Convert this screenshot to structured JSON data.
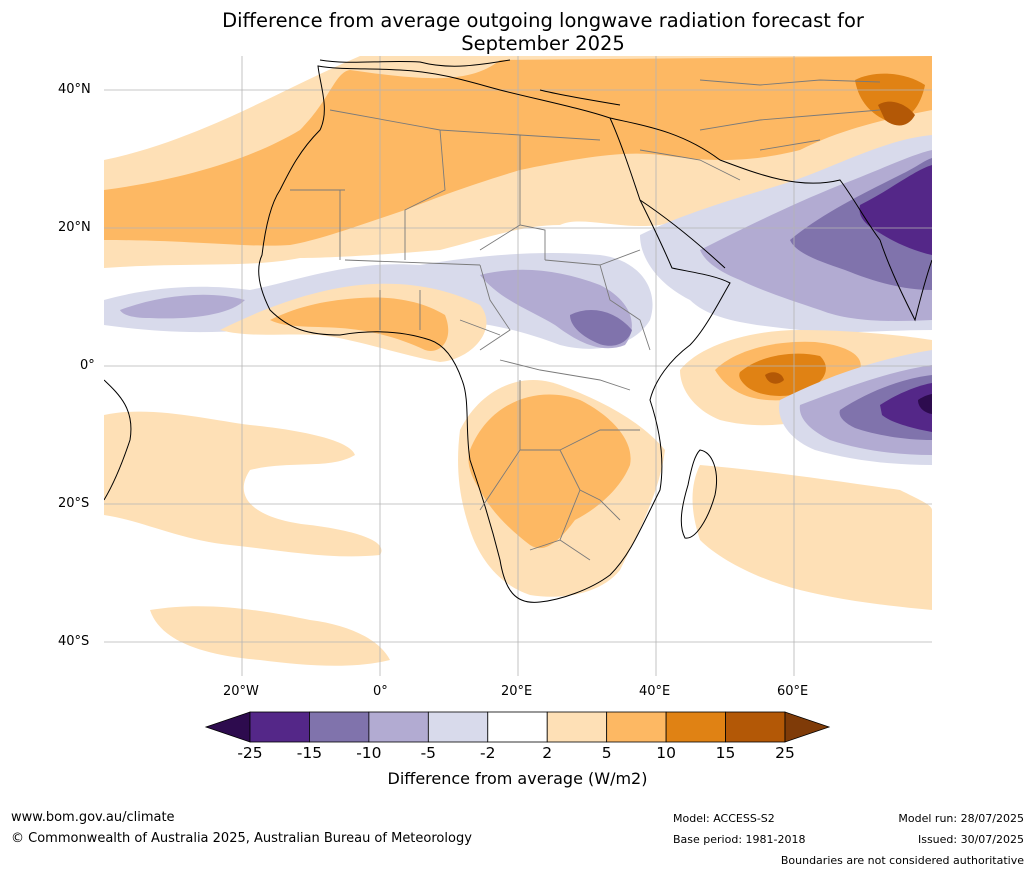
{
  "title_line1": "Difference from average outgoing longwave radiation forecast for",
  "title_line2": "September 2025",
  "lat_labels": [
    "40°N",
    "20°N",
    "0°",
    "20°S",
    "40°S"
  ],
  "lon_labels": [
    "20°W",
    "0°",
    "20°E",
    "40°E",
    "60°E"
  ],
  "colorbar": {
    "ticks": [
      "-25",
      "-15",
      "-10",
      "-5",
      "-2",
      "2",
      "5",
      "10",
      "15",
      "25"
    ],
    "colors": [
      "#2d0b4e",
      "#542788",
      "#8073ac",
      "#b2abd2",
      "#d8daeb",
      "#ffffff",
      "#fee0b6",
      "#fdb863",
      "#e08214",
      "#b35806",
      "#7f3b08"
    ],
    "label": "Difference from average (W/m2)"
  },
  "footer": {
    "website": "www.bom.gov.au/climate",
    "copyright": "© Commonwealth of Australia 2025, Australian Bureau of Meteorology",
    "model": "Model: ACCESS-S2",
    "base_period": "Base period: 1981-2018",
    "model_run": "Model run: 28/07/2025",
    "issued": "Issued: 30/07/2025",
    "disclaimer": "Boundaries are not considered authoritative"
  }
}
